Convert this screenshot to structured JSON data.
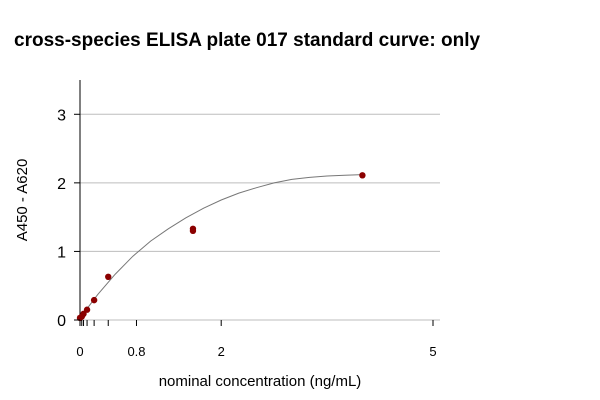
{
  "chart_data": {
    "type": "scatter",
    "title": "cross-species ELISA plate 017 standard curve: only",
    "xlabel": "nominal concentration (ng/mL)",
    "ylabel": "A450 - A620",
    "xlim": [
      0,
      5
    ],
    "ylim": [
      0,
      3.5
    ],
    "x_tick_labels": [
      {
        "value": 0,
        "label": "0"
      },
      {
        "value": 0.8,
        "label": "0.8"
      },
      {
        "value": 2,
        "label": "2"
      },
      {
        "value": 5,
        "label": "5"
      }
    ],
    "x_minor_ticks": [
      0.025,
      0.05,
      0.1,
      0.2,
      0.4
    ],
    "y_ticks": [
      0,
      1,
      2,
      3
    ],
    "grid": "horizontal",
    "series": [
      {
        "color": "#8b0000",
        "points": [
          {
            "x": 0.0,
            "y": 0.03
          },
          {
            "x": 0.025,
            "y": 0.05
          },
          {
            "x": 0.05,
            "y": 0.09
          },
          {
            "x": 0.1,
            "y": 0.15
          },
          {
            "x": 0.2,
            "y": 0.29
          },
          {
            "x": 0.4,
            "y": 0.63
          },
          {
            "x": 1.6,
            "y": 1.3
          },
          {
            "x": 1.6,
            "y": 1.33
          },
          {
            "x": 4.0,
            "y": 2.11
          }
        ]
      }
    ],
    "fit_curve": {
      "color": "#777777",
      "points": [
        [
          0,
          0.03
        ],
        [
          0.25,
          0.37
        ],
        [
          0.5,
          0.67
        ],
        [
          0.75,
          0.93
        ],
        [
          1.0,
          1.15
        ],
        [
          1.25,
          1.33
        ],
        [
          1.5,
          1.49
        ],
        [
          1.75,
          1.63
        ],
        [
          2.0,
          1.75
        ],
        [
          2.25,
          1.85
        ],
        [
          2.5,
          1.93
        ],
        [
          2.75,
          2.0
        ],
        [
          3.0,
          2.05
        ],
        [
          3.25,
          2.08
        ],
        [
          3.5,
          2.1
        ],
        [
          3.75,
          2.11
        ],
        [
          4.0,
          2.12
        ]
      ]
    }
  }
}
